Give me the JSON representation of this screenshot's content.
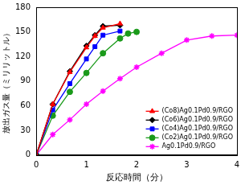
{
  "chart_data": {
    "type": "line",
    "x_label": "反応時間（分）",
    "y_label": "放出ガス量（ミリリットル）",
    "xlim": [
      0,
      4
    ],
    "xticks": [
      0,
      1,
      2,
      3,
      4
    ],
    "ylim": [
      0,
      180
    ],
    "yticks": [
      0,
      30,
      60,
      90,
      120,
      150,
      180
    ],
    "grid": false,
    "legend": "lower right",
    "series": [
      {
        "name": "(Co8)Ag0.1Pd0.9/RGO",
        "color": "#ff0000",
        "marker": "triangle",
        "x": [
          0,
          0.33,
          0.67,
          1,
          1.17,
          1.33,
          1.67
        ],
        "values": [
          0,
          62,
          101,
          131,
          145,
          155,
          160
        ]
      },
      {
        "name": "(Co6)Ag0.1Pd0.9/RGO",
        "color": "#000000",
        "marker": "diamond",
        "x": [
          0,
          0.33,
          0.67,
          1,
          1.17,
          1.33,
          1.67
        ],
        "values": [
          0,
          62,
          102,
          133,
          146,
          157,
          158
        ]
      },
      {
        "name": "(Co4)Ag0.1Pd0.9/RGO",
        "color": "#0000ff",
        "marker": "square",
        "x": [
          0,
          0.33,
          0.67,
          1,
          1.17,
          1.33,
          1.67
        ],
        "values": [
          0,
          55,
          87,
          117,
          132,
          146,
          151
        ]
      },
      {
        "name": "(Co2)Ag0.1Pd0.9/RGO",
        "color": "#1a9a1a",
        "marker": "circle",
        "x": [
          0,
          0.33,
          0.67,
          1,
          1.33,
          1.67,
          1.83,
          2
        ],
        "values": [
          0,
          48,
          77,
          100,
          124,
          142,
          148,
          150
        ]
      },
      {
        "name": "Ag0.1Pd0.9/RGO",
        "color": "#ff00ff",
        "marker": "star",
        "x": [
          0,
          0.33,
          0.67,
          1,
          1.33,
          1.67,
          2,
          2.5,
          3,
          3.5,
          4
        ],
        "values": [
          0,
          25,
          43,
          62,
          78,
          93,
          107,
          124,
          140,
          145,
          146
        ]
      }
    ]
  }
}
